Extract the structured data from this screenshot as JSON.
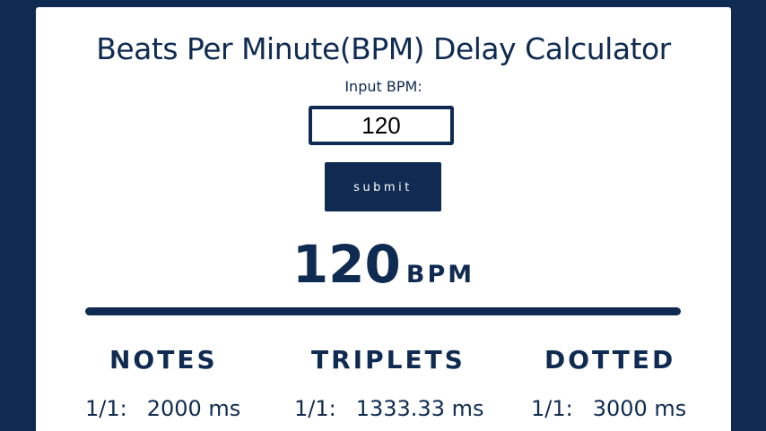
{
  "title": "Beats Per Minute(BPM) Delay Calculator",
  "input_label": "Input BPM:",
  "input_value": "120",
  "submit_label": "submit",
  "display": {
    "value": "120",
    "unit": "BPM"
  },
  "columns": [
    {
      "header": "NOTES",
      "note": "1/1:",
      "value": "2000 ms"
    },
    {
      "header": "TRIPLETS",
      "note": "1/1:",
      "value": "1333.33 ms"
    },
    {
      "header": "DOTTED",
      "note": "1/1:",
      "value": "3000 ms"
    }
  ],
  "colors": {
    "primary": "#0f2b52",
    "background": "#ffffff"
  }
}
